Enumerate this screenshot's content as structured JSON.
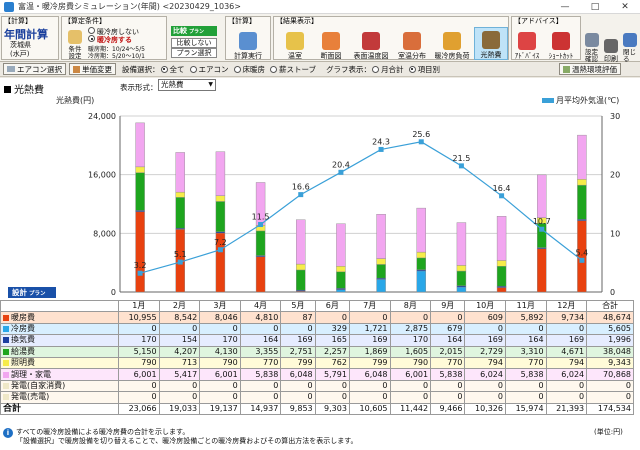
{
  "window": {
    "title": "富温・暖冷房費シミュレーション(年間) <20230429_1036>",
    "minimize": "—",
    "maximize": "□",
    "close": "✕"
  },
  "ribbon": {
    "group_calc": "【計算】",
    "mode_title": "年間計算",
    "location_line1": "茨城県",
    "location_line2": "(水戸)",
    "group_conditions": "【算定条件】",
    "conditions_button": "条件設定",
    "cooling_off": "暖冷房しない",
    "cooling_on": "暖冷房する",
    "heating_period": "暖房期：10/24～5/5",
    "cooling_period": "冷房期：5/20～10/1",
    "compare_title": "比較",
    "compare_badge": "プラン",
    "compare_off": "比較しない",
    "plan_select": "プラン選択",
    "run_button": "計算実行",
    "group_results": "【結果表示】",
    "result_buttons": [
      "温室",
      "断面図",
      "表面温度図",
      "室温分布",
      "暖冷房負荷",
      "光熱費"
    ],
    "group_advice": "【アドバイス】",
    "advice_button": "ｱﾄﾞﾊﾞｲｽ",
    "shortcut_button": "ｼｮｰﾄｶｯﾄ",
    "settings_button": "設定確認",
    "print_button": "印刷",
    "close_button": "閉じる"
  },
  "toolbar": {
    "aircon_select": "エアコン選択",
    "unit_change": "単価変更",
    "equipment_label": "設備選択：",
    "equipment_options": [
      "全て",
      "エアコン",
      "床暖房",
      "薪ストーブ"
    ],
    "equipment_selected": "全て",
    "graph_label": "グラフ表示：",
    "graph_options": [
      "月合計",
      "項目別"
    ],
    "graph_selected": "項目別",
    "env_button": "温熱環境評価"
  },
  "panel": {
    "title": "光熱費",
    "format_label": "表示形式：",
    "format_value": "光熱費",
    "design_tag": "設計",
    "design_badge": "プラン"
  },
  "chart_data": {
    "type": "bar",
    "stacked": true,
    "ylabel": "光熱費(円)",
    "ylabel_right": "月平均外気温(℃)",
    "ylim": [
      0,
      24000
    ],
    "ylim_right": [
      0,
      30
    ],
    "yticks": [
      "0",
      "8,000",
      "16,000",
      "24,000"
    ],
    "yticks_right": [
      "0",
      "10",
      "20",
      "30"
    ],
    "categories": [
      "1月",
      "2月",
      "3月",
      "4月",
      "5月",
      "6月",
      "7月",
      "8月",
      "9月",
      "10月",
      "11月",
      "12月"
    ],
    "legend": "top-right",
    "series": [
      {
        "name": "暖房費",
        "color": "#e8410f",
        "values": [
          10955,
          8542,
          8046,
          4810,
          87,
          0,
          0,
          0,
          0,
          609,
          5892,
          9734
        ]
      },
      {
        "name": "冷房費",
        "color": "#29a7e8",
        "values": [
          0,
          0,
          0,
          0,
          0,
          329,
          1721,
          2875,
          679,
          0,
          0,
          0
        ]
      },
      {
        "name": "換気費",
        "color": "#1b3fa0",
        "values": [
          170,
          154,
          170,
          164,
          169,
          165,
          169,
          170,
          164,
          169,
          164,
          169
        ]
      },
      {
        "name": "給湯費",
        "color": "#1ea51e",
        "values": [
          5150,
          4207,
          4130,
          3355,
          2751,
          2257,
          1869,
          1605,
          2015,
          2729,
          3310,
          4671
        ]
      },
      {
        "name": "照明費",
        "color": "#f6ec4a",
        "values": [
          790,
          713,
          790,
          770,
          799,
          762,
          799,
          790,
          770,
          794,
          770,
          794
        ]
      },
      {
        "name": "調理・家電",
        "color": "#f2a6f0",
        "values": [
          6001,
          5417,
          6001,
          5838,
          6048,
          5791,
          6048,
          6001,
          5838,
          6024,
          5838,
          6024
        ]
      }
    ],
    "line": {
      "name": "月平均外気温",
      "color": "#3aa0d8",
      "values": [
        3.2,
        5.1,
        7.2,
        11.5,
        16.6,
        20.4,
        24.3,
        25.6,
        21.5,
        16.4,
        10.7,
        5.4
      ],
      "labels": [
        "3.2",
        "5.1",
        "7.2",
        "11.5",
        "16.6",
        "20.4",
        "24.3",
        "25.6",
        "21.5",
        "16.4",
        "10.7",
        "5.4"
      ]
    }
  },
  "table": {
    "total_header": "合計",
    "rows": [
      {
        "label": "暖房費",
        "color": "#e8410f",
        "bg": "#ffe2cf",
        "values": [
          "10,955",
          "8,542",
          "8,046",
          "4,810",
          "87",
          "0",
          "0",
          "0",
          "0",
          "609",
          "5,892",
          "9,734",
          "48,674"
        ]
      },
      {
        "label": "冷房費",
        "color": "#29a7e8",
        "bg": "#d8efff",
        "values": [
          "0",
          "0",
          "0",
          "0",
          "0",
          "329",
          "1,721",
          "2,875",
          "679",
          "0",
          "0",
          "0",
          "5,605"
        ]
      },
      {
        "label": "換気費",
        "color": "#1b3fa0",
        "bg": "#e6ecff",
        "values": [
          "170",
          "154",
          "170",
          "164",
          "169",
          "165",
          "169",
          "170",
          "164",
          "169",
          "164",
          "169",
          "1,996"
        ]
      },
      {
        "label": "給湯費",
        "color": "#1ea51e",
        "bg": "#dff5df",
        "values": [
          "5,150",
          "4,207",
          "4,130",
          "3,355",
          "2,751",
          "2,257",
          "1,869",
          "1,605",
          "2,015",
          "2,729",
          "3,310",
          "4,671",
          "38,048"
        ]
      },
      {
        "label": "照明費",
        "color": "#f6ec4a",
        "bg": "#fffbd8",
        "values": [
          "790",
          "713",
          "790",
          "770",
          "799",
          "762",
          "799",
          "790",
          "770",
          "794",
          "770",
          "794",
          "9,343"
        ]
      },
      {
        "label": "調理・家電",
        "color": "#f2a6f0",
        "bg": "#fde6fb",
        "values": [
          "6,001",
          "5,417",
          "6,001",
          "5,838",
          "6,048",
          "5,791",
          "6,048",
          "6,001",
          "5,838",
          "6,024",
          "5,838",
          "6,024",
          "70,868"
        ]
      },
      {
        "label": "発電(自家消費)",
        "color": "#f0e8c8",
        "bg": "#fff8ee",
        "values": [
          "0",
          "0",
          "0",
          "0",
          "0",
          "0",
          "0",
          "0",
          "0",
          "0",
          "0",
          "0",
          "0"
        ]
      },
      {
        "label": "発電(売電)",
        "color": "#f0e8c8",
        "bg": "#fff8ee",
        "values": [
          "0",
          "0",
          "0",
          "0",
          "0",
          "0",
          "0",
          "0",
          "0",
          "0",
          "0",
          "0",
          "0"
        ]
      },
      {
        "label": "合計",
        "color": "",
        "bg": "#ffffff",
        "values": [
          "23,066",
          "19,033",
          "19,137",
          "14,937",
          "9,853",
          "9,303",
          "10,605",
          "11,442",
          "9,466",
          "10,326",
          "15,974",
          "21,393",
          "174,534"
        ]
      }
    ]
  },
  "footer": {
    "note1": "すべての暖冷房設備による暖冷房費の合計を示します。",
    "note2": "「設備選択」で暖房設備を切り替えることで、暖冷房設備ごとの暖冷房費およびその算出方法を表示します。",
    "unit": "(単位:円)"
  }
}
